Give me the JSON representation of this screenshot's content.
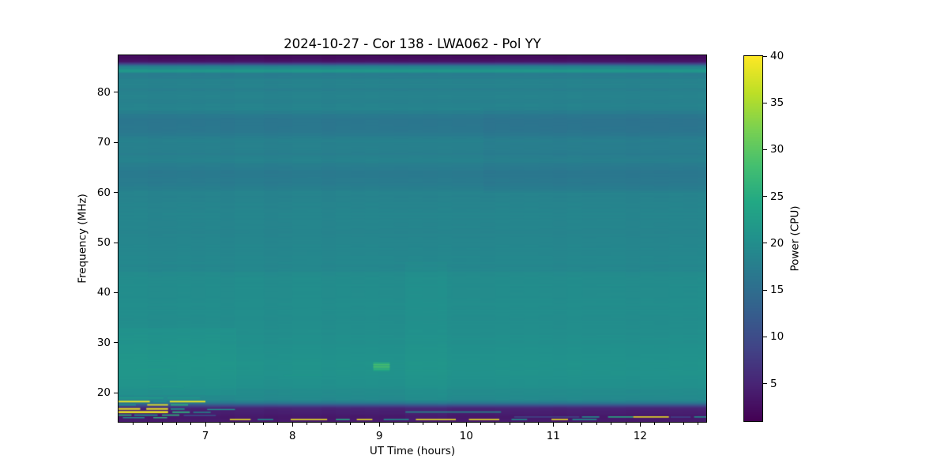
{
  "chart_data": {
    "type": "heatmap",
    "title": "2024-10-27 - Cor 138 - LWA062 - Pol YY",
    "xlabel": "UT Time (hours)",
    "ylabel": "Frequency (MHz)",
    "colorbar_label": "Power (CPU)",
    "x_range_hours": [
      6.0,
      12.76
    ],
    "x_major_ticks": [
      7,
      8,
      9,
      10,
      11,
      12
    ],
    "x_minor_ticks_per_hour": 6,
    "y_range_mhz": [
      14.2,
      87.4
    ],
    "y_major_ticks": [
      20,
      30,
      40,
      50,
      60,
      70,
      80
    ],
    "colorbar": {
      "vmin": 1,
      "vmax": 40,
      "ticks": [
        5,
        10,
        15,
        20,
        25,
        30,
        35,
        40
      ],
      "colormap": "viridis"
    },
    "viridis_stops": [
      [
        0.0,
        "#440154"
      ],
      [
        0.1,
        "#482475"
      ],
      [
        0.2,
        "#414487"
      ],
      [
        0.3,
        "#355f8d"
      ],
      [
        0.4,
        "#2a788e"
      ],
      [
        0.5,
        "#21918c"
      ],
      [
        0.6,
        "#22a884"
      ],
      [
        0.7,
        "#44bf70"
      ],
      [
        0.8,
        "#7ad151"
      ],
      [
        0.9,
        "#bddf26"
      ],
      [
        1.0,
        "#fde725"
      ]
    ],
    "background_freq_power_profile": [
      [
        87.4,
        2.2
      ],
      [
        86.8,
        2.3
      ],
      [
        86.2,
        3.2
      ],
      [
        85.7,
        10.0
      ],
      [
        85.3,
        17.0
      ],
      [
        85.05,
        18.5
      ],
      [
        84.75,
        19.0
      ],
      [
        84.55,
        21.3
      ],
      [
        84.15,
        21.3
      ],
      [
        83.9,
        17.4
      ],
      [
        83.1,
        17.4
      ],
      [
        82.6,
        18.2
      ],
      [
        81.2,
        18.3
      ],
      [
        80.7,
        17.7
      ],
      [
        79.6,
        18.4
      ],
      [
        78.2,
        18.1
      ],
      [
        76.8,
        18.5
      ],
      [
        75.5,
        17.0
      ],
      [
        74.8,
        16.4
      ],
      [
        72.6,
        16.4
      ],
      [
        71.4,
        17.2
      ],
      [
        70.8,
        18.0
      ],
      [
        69.2,
        18.0
      ],
      [
        67.8,
        17.6
      ],
      [
        66.4,
        18.2
      ],
      [
        65.0,
        17.1
      ],
      [
        63.4,
        16.9
      ],
      [
        61.4,
        17.1
      ],
      [
        60.4,
        18.2
      ],
      [
        58.0,
        18.4
      ],
      [
        55.0,
        18.7
      ],
      [
        52.0,
        18.6
      ],
      [
        49.0,
        18.9
      ],
      [
        46.0,
        18.9
      ],
      [
        44.4,
        18.9
      ],
      [
        44.0,
        19.7
      ],
      [
        41.5,
        19.8
      ],
      [
        39.0,
        19.9
      ],
      [
        36.5,
        20.0
      ],
      [
        34.0,
        19.9
      ],
      [
        31.5,
        20.1
      ],
      [
        29.0,
        20.4
      ],
      [
        26.5,
        20.6
      ],
      [
        24.5,
        20.8
      ],
      [
        23.0,
        20.6
      ],
      [
        21.5,
        20.2
      ],
      [
        20.3,
        19.8
      ],
      [
        19.2,
        19.6
      ],
      [
        18.5,
        19.2
      ],
      [
        17.9,
        16.5
      ],
      [
        17.3,
        9.0
      ],
      [
        16.9,
        5.5
      ],
      [
        16.2,
        4.3
      ],
      [
        15.2,
        3.8
      ],
      [
        14.2,
        3.6
      ]
    ],
    "texture": {
      "striation_amplitude": 0.35,
      "column_minutes": 10,
      "column_amplitude": 0.3
    },
    "regions": [
      [
        6.0,
        7.35,
        19.5,
        33.0,
        0.6
      ],
      [
        9.3,
        9.78,
        14.2,
        46.0,
        0.45
      ],
      [
        10.2,
        12.76,
        60.0,
        77.0,
        -0.4
      ]
    ],
    "streaks": [
      [
        6.0,
        6.52,
        18.85,
        19.1,
        22.0
      ],
      [
        6.56,
        6.94,
        18.85,
        19.1,
        21.5
      ],
      [
        6.0,
        6.36,
        18.1,
        18.4,
        39.0
      ],
      [
        6.59,
        7.0,
        18.1,
        18.4,
        39.0
      ],
      [
        6.4,
        6.55,
        18.1,
        18.35,
        20.0
      ],
      [
        6.0,
        6.2,
        17.45,
        17.72,
        20.5
      ],
      [
        6.33,
        6.57,
        17.45,
        17.72,
        39.0
      ],
      [
        6.6,
        6.8,
        17.45,
        17.72,
        26.0
      ],
      [
        6.0,
        6.25,
        16.62,
        16.95,
        39.0
      ],
      [
        6.32,
        6.57,
        16.62,
        16.95,
        39.0
      ],
      [
        6.6,
        6.76,
        16.62,
        16.9,
        21.0
      ],
      [
        6.0,
        6.57,
        15.95,
        16.35,
        39.0
      ],
      [
        6.62,
        6.82,
        15.98,
        16.28,
        26.0
      ],
      [
        6.86,
        7.06,
        16.0,
        16.22,
        21.0
      ],
      [
        6.0,
        6.15,
        15.42,
        15.68,
        26.0
      ],
      [
        6.18,
        6.45,
        15.42,
        15.68,
        21.0
      ],
      [
        6.5,
        6.7,
        15.42,
        15.68,
        26.0
      ],
      [
        6.75,
        7.12,
        15.4,
        15.62,
        11.0
      ],
      [
        6.05,
        6.3,
        14.92,
        15.14,
        20.5
      ],
      [
        6.4,
        6.56,
        14.92,
        15.14,
        26.0
      ],
      [
        7.02,
        7.34,
        16.55,
        16.78,
        20.5
      ],
      [
        6.3,
        6.9,
        26.4,
        26.56,
        22.0
      ],
      [
        6.2,
        6.6,
        24.6,
        24.76,
        22.0
      ],
      [
        6.35,
        6.75,
        21.1,
        21.26,
        22.0
      ],
      [
        7.9,
        8.35,
        23.4,
        23.55,
        21.5
      ],
      [
        8.93,
        9.12,
        25.85,
        26.05,
        26.0
      ],
      [
        8.93,
        9.12,
        25.55,
        25.76,
        28.5
      ],
      [
        8.93,
        9.12,
        25.25,
        25.46,
        29.0
      ],
      [
        8.93,
        9.12,
        24.95,
        25.16,
        28.5
      ],
      [
        8.93,
        9.12,
        24.65,
        24.86,
        27.0
      ],
      [
        8.93,
        9.12,
        24.35,
        24.56,
        24.5
      ],
      [
        9.3,
        10.4,
        16.05,
        16.28,
        20.5
      ],
      [
        10.55,
        11.3,
        15.05,
        15.3,
        9.0
      ],
      [
        11.33,
        11.53,
        15.05,
        15.3,
        20.5
      ],
      [
        11.63,
        11.92,
        15.05,
        15.3,
        25.0
      ],
      [
        11.92,
        12.33,
        15.05,
        15.3,
        39.0
      ],
      [
        12.35,
        12.58,
        15.02,
        15.28,
        9.0
      ],
      [
        12.62,
        12.78,
        15.05,
        15.3,
        20.5
      ],
      [
        7.28,
        7.52,
        14.55,
        14.8,
        39.0
      ],
      [
        7.6,
        7.78,
        14.55,
        14.8,
        20.5
      ],
      [
        7.98,
        8.4,
        14.55,
        14.8,
        39.0
      ],
      [
        8.5,
        8.66,
        14.55,
        14.8,
        25.0
      ],
      [
        8.74,
        8.92,
        14.55,
        14.8,
        39.0
      ],
      [
        9.05,
        9.34,
        14.55,
        14.8,
        20.5
      ],
      [
        9.42,
        9.88,
        14.55,
        14.8,
        39.0
      ],
      [
        10.03,
        10.38,
        14.55,
        14.8,
        39.0
      ],
      [
        10.52,
        10.7,
        14.55,
        14.8,
        20.5
      ],
      [
        10.98,
        11.17,
        14.55,
        14.8,
        39.0
      ],
      [
        11.22,
        11.5,
        14.55,
        14.8,
        20.5
      ]
    ]
  }
}
